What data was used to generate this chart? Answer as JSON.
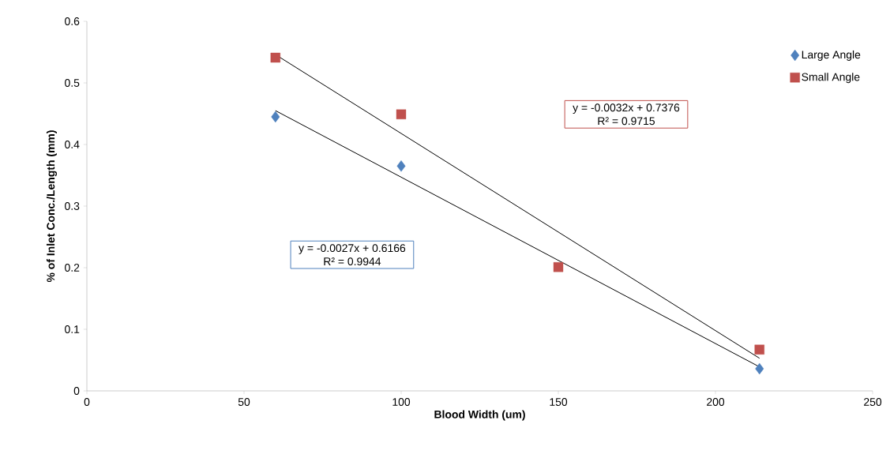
{
  "chart_data": {
    "type": "scatter",
    "xlabel": "Blood Width (um)",
    "ylabel": "% of Inlet Conc./Length (mm)",
    "xlim": [
      0,
      250
    ],
    "xticks": [
      0,
      50,
      100,
      150,
      200,
      250
    ],
    "ylim": [
      0,
      0.6
    ],
    "yticks": [
      0,
      0.1,
      0.2,
      0.3,
      0.4,
      0.5,
      0.6
    ],
    "grid": false,
    "legend": "top right",
    "series": [
      {
        "name": "Large Angle",
        "color": "#4f81bd",
        "marker": "diamond",
        "x": [
          60,
          100,
          150,
          214
        ],
        "values": [
          0.445,
          0.365,
          null,
          0.036
        ]
      },
      {
        "name": "Small Angle",
        "color": "#c0504d",
        "marker": "square",
        "x": [
          60,
          100,
          150,
          214
        ],
        "values": [
          0.541,
          0.449,
          0.201,
          0.067
        ]
      },
      {
        "type": "line",
        "color": "#000000",
        "marker": "none",
        "x": [
          60,
          214
        ],
        "values": [
          0.455,
          0.039
        ]
      },
      {
        "type": "line",
        "color": "#000000",
        "marker": "none",
        "x": [
          60,
          214
        ],
        "values": [
          0.546,
          0.053
        ]
      }
    ],
    "annotations": [
      "y = -0.0032x + 0.7376",
      "R² = 0.9715",
      "y = -0.0027x + 0.6166",
      "R² = 0.9944"
    ]
  }
}
